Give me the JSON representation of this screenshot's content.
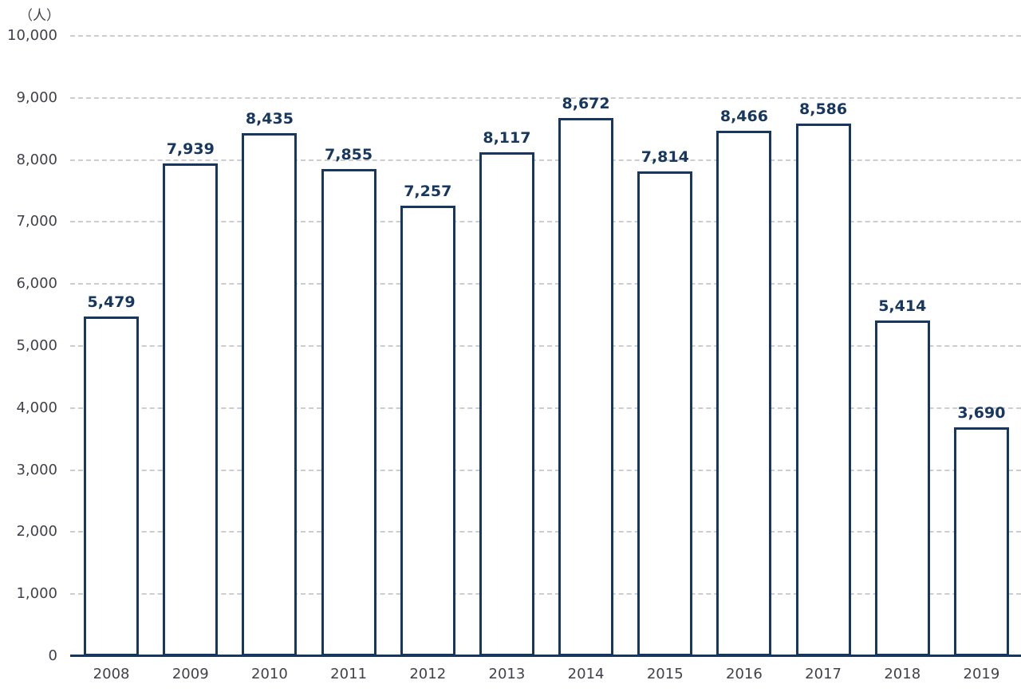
{
  "chart_data": {
    "type": "bar",
    "title": "",
    "unit_label": "（人）",
    "categories": [
      "2008",
      "2009",
      "2010",
      "2011",
      "2012",
      "2013",
      "2014",
      "2015",
      "2016",
      "2017",
      "2018",
      "2019"
    ],
    "values": [
      5479,
      7939,
      8435,
      7855,
      7257,
      8117,
      8672,
      7814,
      8466,
      8586,
      5414,
      3690
    ],
    "value_labels": [
      "5,479",
      "7,939",
      "8,435",
      "7,855",
      "7,257",
      "8,117",
      "8,672",
      "7,814",
      "8,466",
      "8,586",
      "5,414",
      "3,690"
    ],
    "xlabel": "",
    "ylabel": "（人）",
    "ylim": [
      0,
      10000
    ],
    "ytick_values": [
      0,
      1000,
      2000,
      3000,
      4000,
      5000,
      6000,
      7000,
      8000,
      9000,
      10000
    ],
    "ytick_labels": [
      "0",
      "1,000",
      "2,000",
      "3,000",
      "4,000",
      "5,000",
      "6,000",
      "7,000",
      "8,000",
      "9,000",
      "10,000"
    ],
    "grid": "horizontal-dashed",
    "legend": "none",
    "colors": {
      "bar_fill": "#ffffff",
      "bar_border": "#17375e",
      "value_label": "#17375e",
      "axis_line": "#17375e",
      "tick_label": "#41414b",
      "gridline": "#cdcdcd",
      "background": "#ffffff"
    }
  }
}
